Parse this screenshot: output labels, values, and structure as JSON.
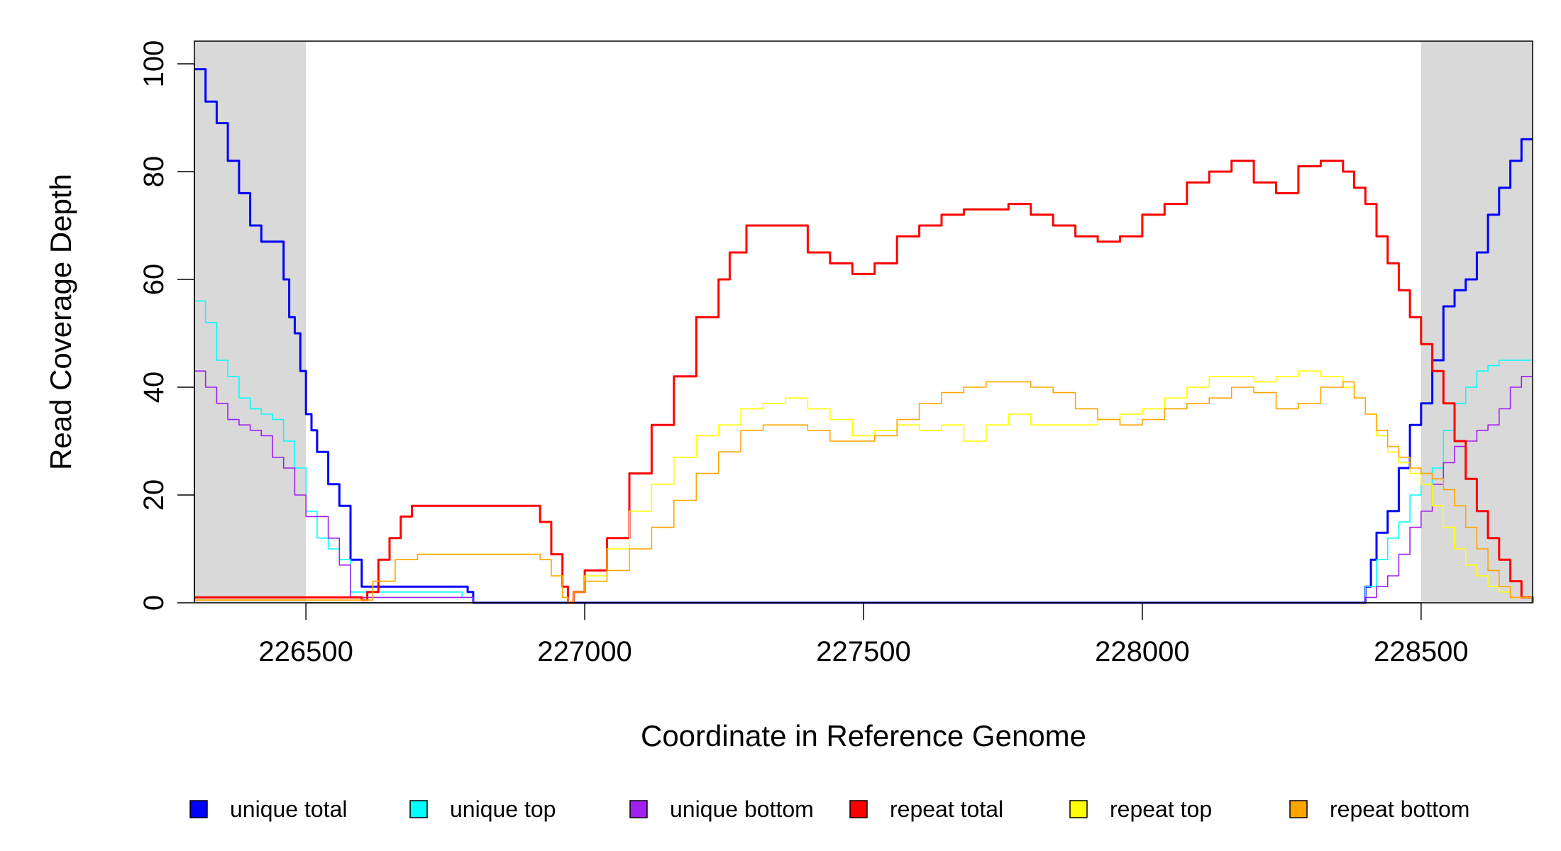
{
  "chart_data": {
    "type": "line",
    "title": "",
    "xlabel": "Coordinate in Reference Genome",
    "ylabel": "Read Coverage Depth",
    "xlim": [
      226300,
      228700
    ],
    "ylim": [
      0,
      100
    ],
    "x_ticks": [
      226500,
      227000,
      227500,
      228000,
      228500
    ],
    "y_ticks": [
      0,
      20,
      40,
      60,
      80,
      100
    ],
    "shaded_regions": [
      [
        226300,
        226500
      ],
      [
        228500,
        228700
      ]
    ],
    "grid": false,
    "legend_position": "bottom",
    "series": [
      {
        "name": "unique total",
        "color": "#0000ff",
        "points": [
          [
            226300,
            99
          ],
          [
            226320,
            93
          ],
          [
            226340,
            89
          ],
          [
            226360,
            82
          ],
          [
            226380,
            76
          ],
          [
            226400,
            70
          ],
          [
            226420,
            67
          ],
          [
            226440,
            67
          ],
          [
            226460,
            60
          ],
          [
            226470,
            53
          ],
          [
            226480,
            50
          ],
          [
            226490,
            43
          ],
          [
            226500,
            35
          ],
          [
            226510,
            32
          ],
          [
            226520,
            28
          ],
          [
            226540,
            22
          ],
          [
            226560,
            18
          ],
          [
            226580,
            8
          ],
          [
            226600,
            3
          ],
          [
            226700,
            3
          ],
          [
            226790,
            2
          ],
          [
            226800,
            0
          ],
          [
            228390,
            0
          ],
          [
            228400,
            3
          ],
          [
            228410,
            8
          ],
          [
            228420,
            13
          ],
          [
            228440,
            17
          ],
          [
            228460,
            25
          ],
          [
            228480,
            33
          ],
          [
            228500,
            37
          ],
          [
            228520,
            45
          ],
          [
            228540,
            55
          ],
          [
            228560,
            58
          ],
          [
            228580,
            60
          ],
          [
            228600,
            65
          ],
          [
            228620,
            72
          ],
          [
            228640,
            77
          ],
          [
            228660,
            82
          ],
          [
            228680,
            86
          ],
          [
            228700,
            86
          ]
        ]
      },
      {
        "name": "unique top",
        "color": "#00ffff",
        "points": [
          [
            226300,
            56
          ],
          [
            226320,
            52
          ],
          [
            226340,
            45
          ],
          [
            226360,
            42
          ],
          [
            226380,
            38
          ],
          [
            226400,
            36
          ],
          [
            226420,
            35
          ],
          [
            226440,
            34
          ],
          [
            226460,
            30
          ],
          [
            226480,
            25
          ],
          [
            226500,
            17
          ],
          [
            226520,
            12
          ],
          [
            226540,
            10
          ],
          [
            226560,
            8
          ],
          [
            226580,
            2
          ],
          [
            226600,
            2
          ],
          [
            226700,
            2
          ],
          [
            226780,
            1
          ],
          [
            226800,
            0
          ],
          [
            228390,
            0
          ],
          [
            228400,
            3
          ],
          [
            228420,
            8
          ],
          [
            228440,
            12
          ],
          [
            228460,
            15
          ],
          [
            228480,
            20
          ],
          [
            228500,
            22
          ],
          [
            228520,
            25
          ],
          [
            228540,
            32
          ],
          [
            228560,
            37
          ],
          [
            228580,
            40
          ],
          [
            228600,
            43
          ],
          [
            228620,
            44
          ],
          [
            228640,
            45
          ],
          [
            228700,
            45
          ]
        ]
      },
      {
        "name": "unique bottom",
        "color": "#a020f0",
        "points": [
          [
            226300,
            43
          ],
          [
            226320,
            40
          ],
          [
            226340,
            37
          ],
          [
            226360,
            34
          ],
          [
            226380,
            33
          ],
          [
            226400,
            32
          ],
          [
            226420,
            31
          ],
          [
            226440,
            27
          ],
          [
            226460,
            25
          ],
          [
            226480,
            20
          ],
          [
            226500,
            16
          ],
          [
            226520,
            16
          ],
          [
            226540,
            12
          ],
          [
            226560,
            7
          ],
          [
            226580,
            1
          ],
          [
            226600,
            1
          ],
          [
            226700,
            1
          ],
          [
            226800,
            0
          ],
          [
            228390,
            0
          ],
          [
            228400,
            1
          ],
          [
            228420,
            3
          ],
          [
            228440,
            5
          ],
          [
            228460,
            9
          ],
          [
            228480,
            14
          ],
          [
            228500,
            17
          ],
          [
            228520,
            22
          ],
          [
            228540,
            26
          ],
          [
            228560,
            29
          ],
          [
            228580,
            30
          ],
          [
            228600,
            32
          ],
          [
            228620,
            33
          ],
          [
            228640,
            36
          ],
          [
            228660,
            40
          ],
          [
            228680,
            42
          ],
          [
            228700,
            42
          ]
        ]
      },
      {
        "name": "repeat total",
        "color": "#ff0000",
        "points": [
          [
            226300,
            1
          ],
          [
            226500,
            1
          ],
          [
            226600,
            0.5
          ],
          [
            226610,
            2
          ],
          [
            226630,
            8
          ],
          [
            226650,
            12
          ],
          [
            226670,
            16
          ],
          [
            226690,
            18
          ],
          [
            226900,
            18
          ],
          [
            226920,
            15
          ],
          [
            226940,
            9
          ],
          [
            226960,
            3
          ],
          [
            226970,
            0
          ],
          [
            226980,
            2
          ],
          [
            227000,
            6
          ],
          [
            227040,
            12
          ],
          [
            227080,
            24
          ],
          [
            227120,
            33
          ],
          [
            227160,
            42
          ],
          [
            227200,
            53
          ],
          [
            227240,
            60
          ],
          [
            227260,
            65
          ],
          [
            227290,
            70
          ],
          [
            227320,
            70
          ],
          [
            227360,
            70
          ],
          [
            227400,
            65
          ],
          [
            227440,
            63
          ],
          [
            227480,
            61
          ],
          [
            227520,
            63
          ],
          [
            227560,
            68
          ],
          [
            227600,
            70
          ],
          [
            227640,
            72
          ],
          [
            227680,
            73
          ],
          [
            227720,
            73
          ],
          [
            227760,
            74
          ],
          [
            227800,
            72
          ],
          [
            227840,
            70
          ],
          [
            227880,
            68
          ],
          [
            227920,
            67
          ],
          [
            227960,
            68
          ],
          [
            228000,
            72
          ],
          [
            228040,
            74
          ],
          [
            228080,
            78
          ],
          [
            228120,
            80
          ],
          [
            228160,
            82
          ],
          [
            228200,
            78
          ],
          [
            228240,
            76
          ],
          [
            228280,
            81
          ],
          [
            228320,
            82
          ],
          [
            228360,
            80
          ],
          [
            228380,
            77
          ],
          [
            228400,
            74
          ],
          [
            228420,
            68
          ],
          [
            228440,
            63
          ],
          [
            228460,
            58
          ],
          [
            228480,
            53
          ],
          [
            228500,
            48
          ],
          [
            228520,
            43
          ],
          [
            228540,
            37
          ],
          [
            228560,
            30
          ],
          [
            228580,
            23
          ],
          [
            228600,
            17
          ],
          [
            228620,
            12
          ],
          [
            228640,
            8
          ],
          [
            228660,
            4
          ],
          [
            228680,
            1
          ],
          [
            228700,
            0
          ]
        ]
      },
      {
        "name": "repeat top",
        "color": "#ffff00",
        "points": [
          [
            226300,
            0.5
          ],
          [
            226600,
            0.5
          ],
          [
            226620,
            4
          ],
          [
            226660,
            8
          ],
          [
            226700,
            9
          ],
          [
            226900,
            9
          ],
          [
            226920,
            8
          ],
          [
            226940,
            5
          ],
          [
            226960,
            1
          ],
          [
            226970,
            0
          ],
          [
            226980,
            2
          ],
          [
            227000,
            5
          ],
          [
            227040,
            10
          ],
          [
            227080,
            17
          ],
          [
            227120,
            22
          ],
          [
            227160,
            27
          ],
          [
            227200,
            31
          ],
          [
            227240,
            33
          ],
          [
            227280,
            36
          ],
          [
            227320,
            37
          ],
          [
            227360,
            38
          ],
          [
            227400,
            36
          ],
          [
            227440,
            34
          ],
          [
            227480,
            31
          ],
          [
            227520,
            32
          ],
          [
            227560,
            33
          ],
          [
            227600,
            32
          ],
          [
            227640,
            33
          ],
          [
            227680,
            30
          ],
          [
            227720,
            33
          ],
          [
            227760,
            35
          ],
          [
            227800,
            33
          ],
          [
            227840,
            33
          ],
          [
            227880,
            33
          ],
          [
            227920,
            34
          ],
          [
            227960,
            35
          ],
          [
            228000,
            36
          ],
          [
            228040,
            38
          ],
          [
            228080,
            40
          ],
          [
            228120,
            42
          ],
          [
            228160,
            42
          ],
          [
            228200,
            41
          ],
          [
            228240,
            42
          ],
          [
            228280,
            43
          ],
          [
            228320,
            42
          ],
          [
            228360,
            40
          ],
          [
            228380,
            38
          ],
          [
            228400,
            35
          ],
          [
            228420,
            31
          ],
          [
            228440,
            28
          ],
          [
            228460,
            26
          ],
          [
            228480,
            24
          ],
          [
            228500,
            22
          ],
          [
            228520,
            18
          ],
          [
            228540,
            14
          ],
          [
            228560,
            10
          ],
          [
            228580,
            7
          ],
          [
            228600,
            5
          ],
          [
            228620,
            3
          ],
          [
            228640,
            2
          ],
          [
            228660,
            1
          ],
          [
            228700,
            0
          ]
        ]
      },
      {
        "name": "repeat bottom",
        "color": "#ffa500",
        "points": [
          [
            226300,
            0.5
          ],
          [
            226600,
            0.5
          ],
          [
            226620,
            4
          ],
          [
            226660,
            8
          ],
          [
            226700,
            9
          ],
          [
            226900,
            9
          ],
          [
            226920,
            8
          ],
          [
            226940,
            5
          ],
          [
            226960,
            1
          ],
          [
            226970,
            0
          ],
          [
            226980,
            2
          ],
          [
            227000,
            4
          ],
          [
            227040,
            6
          ],
          [
            227080,
            10
          ],
          [
            227120,
            14
          ],
          [
            227160,
            19
          ],
          [
            227200,
            24
          ],
          [
            227240,
            28
          ],
          [
            227280,
            32
          ],
          [
            227320,
            33
          ],
          [
            227360,
            33
          ],
          [
            227400,
            32
          ],
          [
            227440,
            30
          ],
          [
            227480,
            30
          ],
          [
            227520,
            31
          ],
          [
            227560,
            34
          ],
          [
            227600,
            37
          ],
          [
            227640,
            39
          ],
          [
            227680,
            40
          ],
          [
            227720,
            41
          ],
          [
            227760,
            41
          ],
          [
            227800,
            40
          ],
          [
            227840,
            39
          ],
          [
            227880,
            36
          ],
          [
            227920,
            34
          ],
          [
            227960,
            33
          ],
          [
            228000,
            34
          ],
          [
            228040,
            36
          ],
          [
            228080,
            37
          ],
          [
            228120,
            38
          ],
          [
            228160,
            40
          ],
          [
            228200,
            39
          ],
          [
            228240,
            36
          ],
          [
            228280,
            37
          ],
          [
            228320,
            40
          ],
          [
            228360,
            41
          ],
          [
            228380,
            38
          ],
          [
            228400,
            35
          ],
          [
            228420,
            32
          ],
          [
            228440,
            29
          ],
          [
            228460,
            27
          ],
          [
            228480,
            25
          ],
          [
            228500,
            24
          ],
          [
            228520,
            23
          ],
          [
            228540,
            21
          ],
          [
            228560,
            18
          ],
          [
            228580,
            14
          ],
          [
            228600,
            10
          ],
          [
            228620,
            6
          ],
          [
            228640,
            3
          ],
          [
            228660,
            1
          ],
          [
            228700,
            0
          ]
        ]
      }
    ]
  }
}
